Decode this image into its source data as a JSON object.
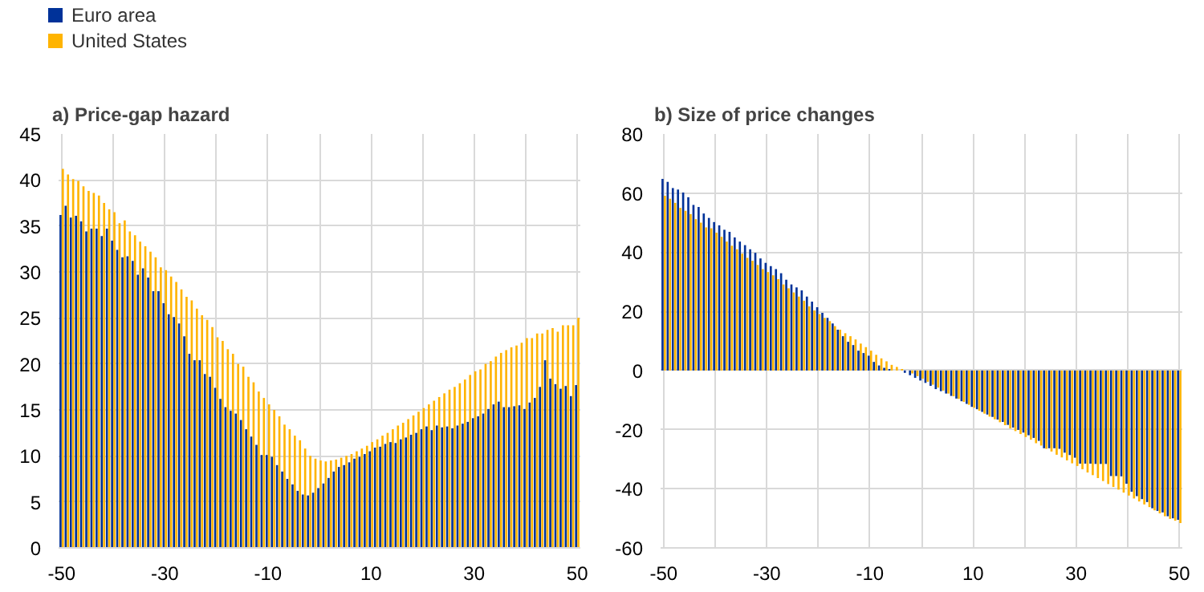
{
  "chart_data": [
    {
      "type": "bar",
      "title": "a) Price-gap hazard",
      "legend": "top left",
      "grid": true,
      "x": [
        -50,
        -49,
        -48,
        -47,
        -46,
        -45,
        -44,
        -43,
        -42,
        -41,
        -40,
        -39,
        -38,
        -37,
        -36,
        -35,
        -34,
        -33,
        -32,
        -31,
        -30,
        -29,
        -28,
        -27,
        -26,
        -25,
        -24,
        -23,
        -22,
        -21,
        -20,
        -19,
        -18,
        -17,
        -16,
        -15,
        -14,
        -13,
        -12,
        -11,
        -10,
        -9,
        -8,
        -7,
        -6,
        -5,
        -4,
        -3,
        -2,
        -1,
        0,
        1,
        2,
        3,
        4,
        5,
        6,
        7,
        8,
        9,
        10,
        11,
        12,
        13,
        14,
        15,
        16,
        17,
        18,
        19,
        20,
        21,
        22,
        23,
        24,
        25,
        26,
        27,
        28,
        29,
        30,
        31,
        32,
        33,
        34,
        35,
        36,
        37,
        38,
        39,
        40,
        41,
        42,
        43,
        44,
        45,
        46,
        47,
        48,
        49,
        50
      ],
      "xlim": [
        -50.6,
        50.6
      ],
      "xticks": [
        -50,
        {
          "value": -40,
          "label": null
        },
        -30,
        {
          "value": -20,
          "label": null
        },
        -10,
        {
          "value": 0,
          "label": null
        },
        10,
        {
          "value": 20,
          "label": null
        },
        30,
        {
          "value": 40,
          "label": null
        },
        50
      ],
      "ylim": [
        0,
        45
      ],
      "yticks": [
        0,
        5,
        10,
        15,
        20,
        25,
        30,
        35,
        40,
        45
      ],
      "series": [
        {
          "name": "Euro area",
          "color": "#003299",
          "values": [
            36.2,
            37.2,
            35.9,
            36.1,
            35.5,
            34.4,
            34.7,
            34.7,
            33.9,
            34.7,
            33.4,
            32.4,
            31.6,
            31.7,
            31.2,
            29.7,
            30.4,
            29.4,
            27.9,
            27.9,
            26.6,
            25.4,
            25.1,
            24.4,
            23.0,
            21.1,
            20.4,
            20.4,
            18.9,
            18.6,
            17.4,
            16.2,
            15.3,
            14.9,
            14.6,
            13.9,
            12.9,
            12.1,
            11.2,
            10.1,
            10.1,
            9.9,
            9.0,
            8.3,
            7.5,
            6.9,
            6.2,
            5.8,
            5.7,
            6.0,
            6.5,
            7.0,
            7.6,
            8.3,
            8.8,
            9.0,
            9.3,
            9.7,
            9.9,
            10.2,
            10.5,
            10.9,
            11.0,
            11.3,
            11.5,
            11.4,
            11.8,
            12.0,
            12.3,
            12.5,
            12.9,
            13.2,
            12.8,
            13.3,
            13.1,
            13.2,
            13.0,
            13.3,
            13.5,
            13.7,
            14.1,
            14.3,
            14.6,
            15.1,
            15.6,
            15.9,
            15.3,
            15.3,
            15.4,
            15.5,
            15.1,
            15.8,
            16.3,
            17.5,
            20.4,
            18.4,
            17.8,
            17.3,
            17.6,
            16.5,
            17.7
          ]
        },
        {
          "name": "United States",
          "color": "#ffb400",
          "values": [
            41.2,
            40.6,
            40.1,
            39.9,
            39.3,
            38.8,
            38.6,
            38.3,
            37.5,
            36.8,
            36.5,
            35.3,
            35.6,
            34.4,
            34.0,
            33.3,
            32.8,
            32.2,
            31.6,
            30.5,
            30.2,
            29.5,
            28.9,
            28.1,
            27.3,
            26.9,
            26.0,
            25.3,
            24.8,
            24.0,
            22.9,
            22.5,
            21.6,
            21.1,
            20.0,
            19.7,
            18.6,
            18.0,
            17.0,
            16.3,
            15.6,
            15.0,
            14.3,
            13.4,
            12.9,
            12.2,
            11.7,
            10.8,
            10.0,
            9.7,
            9.5,
            9.4,
            9.5,
            9.6,
            9.8,
            10.0,
            10.2,
            10.5,
            10.8,
            11.1,
            11.5,
            11.8,
            12.2,
            12.5,
            12.9,
            13.3,
            13.6,
            14.0,
            14.4,
            14.8,
            15.2,
            15.6,
            16.0,
            16.4,
            16.8,
            17.2,
            17.5,
            17.9,
            18.3,
            18.8,
            19.2,
            19.4,
            20.0,
            20.3,
            20.8,
            21.2,
            21.5,
            21.8,
            22.0,
            22.3,
            22.8,
            22.8,
            23.3,
            23.3,
            23.7,
            23.9,
            23.5,
            24.2,
            24.2,
            24.2,
            25.0
          ]
        }
      ]
    },
    {
      "type": "bar",
      "title": "b) Size of price changes",
      "grid": true,
      "x": [
        -50,
        -49,
        -48,
        -47,
        -46,
        -45,
        -44,
        -43,
        -42,
        -41,
        -40,
        -39,
        -38,
        -37,
        -36,
        -35,
        -34,
        -33,
        -32,
        -31,
        -30,
        -29,
        -28,
        -27,
        -26,
        -25,
        -24,
        -23,
        -22,
        -21,
        -20,
        -19,
        -18,
        -17,
        -16,
        -15,
        -14,
        -13,
        -12,
        -11,
        -10,
        -9,
        -8,
        -7,
        -6,
        -5,
        -4,
        -3,
        -2,
        -1,
        0,
        1,
        2,
        3,
        4,
        5,
        6,
        7,
        8,
        9,
        10,
        11,
        12,
        13,
        14,
        15,
        16,
        17,
        18,
        19,
        20,
        21,
        22,
        23,
        24,
        25,
        26,
        27,
        28,
        29,
        30,
        31,
        32,
        33,
        34,
        35,
        36,
        37,
        38,
        39,
        40,
        41,
        42,
        43,
        44,
        45,
        46,
        47,
        48,
        49,
        50
      ],
      "xlim": [
        -50.6,
        50.6
      ],
      "xticks": [
        -50,
        {
          "value": -40,
          "label": null
        },
        -30,
        {
          "value": -20,
          "label": null
        },
        -10,
        {
          "value": 0,
          "label": null
        },
        10,
        {
          "value": 20,
          "label": null
        },
        30,
        {
          "value": 40,
          "label": null
        },
        50
      ],
      "ylim": [
        -60,
        80
      ],
      "yticks": [
        -60,
        -40,
        -20,
        0,
        20,
        40,
        60,
        80
      ],
      "series": [
        {
          "color": "#003299",
          "values": [
            64.8,
            63.8,
            61.7,
            61.2,
            60.2,
            58.6,
            56.0,
            55.3,
            53.1,
            51.6,
            50.2,
            49.1,
            47.6,
            46.9,
            45.0,
            43.6,
            42.4,
            41.0,
            39.8,
            37.9,
            36.4,
            35.3,
            34.3,
            32.9,
            30.7,
            29.1,
            28.1,
            27.1,
            25.0,
            23.3,
            21.4,
            19.5,
            17.8,
            15.9,
            13.8,
            11.6,
            9.7,
            8.6,
            6.7,
            5.9,
            5.0,
            2.9,
            1.7,
            0.9,
            0.5,
            null,
            null,
            -0.8,
            -1.6,
            -2.5,
            -3.4,
            -4.2,
            -5.2,
            -6.3,
            -7.0,
            -7.8,
            -8.6,
            -9.5,
            -10.4,
            -11.3,
            -12.3,
            -13.1,
            -14.0,
            -14.9,
            -15.7,
            -16.6,
            -17.4,
            -18.4,
            -19.3,
            -20.1,
            -21.0,
            -21.9,
            -22.8,
            -23.8,
            -26.3,
            -26.3,
            -26.3,
            -26.5,
            -27.8,
            -28.6,
            -29.5,
            -31.5,
            -31.5,
            -31.5,
            -31.6,
            -31.6,
            -31.6,
            -35.7,
            -35.7,
            -35.8,
            -38.3,
            -41.0,
            -42.5,
            -43.5,
            -44.5,
            -46.6,
            -47.5,
            -48.0,
            -49.3,
            -50.0,
            -50.5
          ]
        },
        {
          "color": "#ffb400",
          "values": [
            59.1,
            58.1,
            56.7,
            55.0,
            54.0,
            52.9,
            51.2,
            50.0,
            48.4,
            48.1,
            46.6,
            45.2,
            43.6,
            42.2,
            41.0,
            39.5,
            38.1,
            37.1,
            35.7,
            34.3,
            33.3,
            32.2,
            30.9,
            29.1,
            27.8,
            26.4,
            25.0,
            23.6,
            21.7,
            20.3,
            19.1,
            17.8,
            16.7,
            15.0,
            13.8,
            12.6,
            11.6,
            10.5,
            9.1,
            7.9,
            6.7,
            5.3,
            4.1,
            3.1,
            1.9,
            1.2,
            0.5,
            null,
            -1.0,
            -1.9,
            -2.8,
            -3.8,
            -4.8,
            -5.8,
            -6.8,
            -7.8,
            -8.7,
            -9.6,
            -10.6,
            -11.6,
            -12.6,
            -13.6,
            -14.6,
            -15.6,
            -16.5,
            -17.5,
            -18.5,
            -19.6,
            -20.5,
            -21.5,
            -22.5,
            -23.4,
            -24.6,
            -25.4,
            -26.5,
            -27.4,
            -28.5,
            -29.4,
            -30.4,
            -31.4,
            -32.3,
            -33.4,
            -34.5,
            -35.4,
            -36.4,
            -37.4,
            -38.4,
            -39.4,
            -40.3,
            -41.3,
            -42.3,
            -43.3,
            -44.3,
            -45.3,
            -46.2,
            -47.3,
            -48.3,
            -49.3,
            -50.2,
            -50.8,
            -51.6
          ]
        }
      ]
    }
  ]
}
